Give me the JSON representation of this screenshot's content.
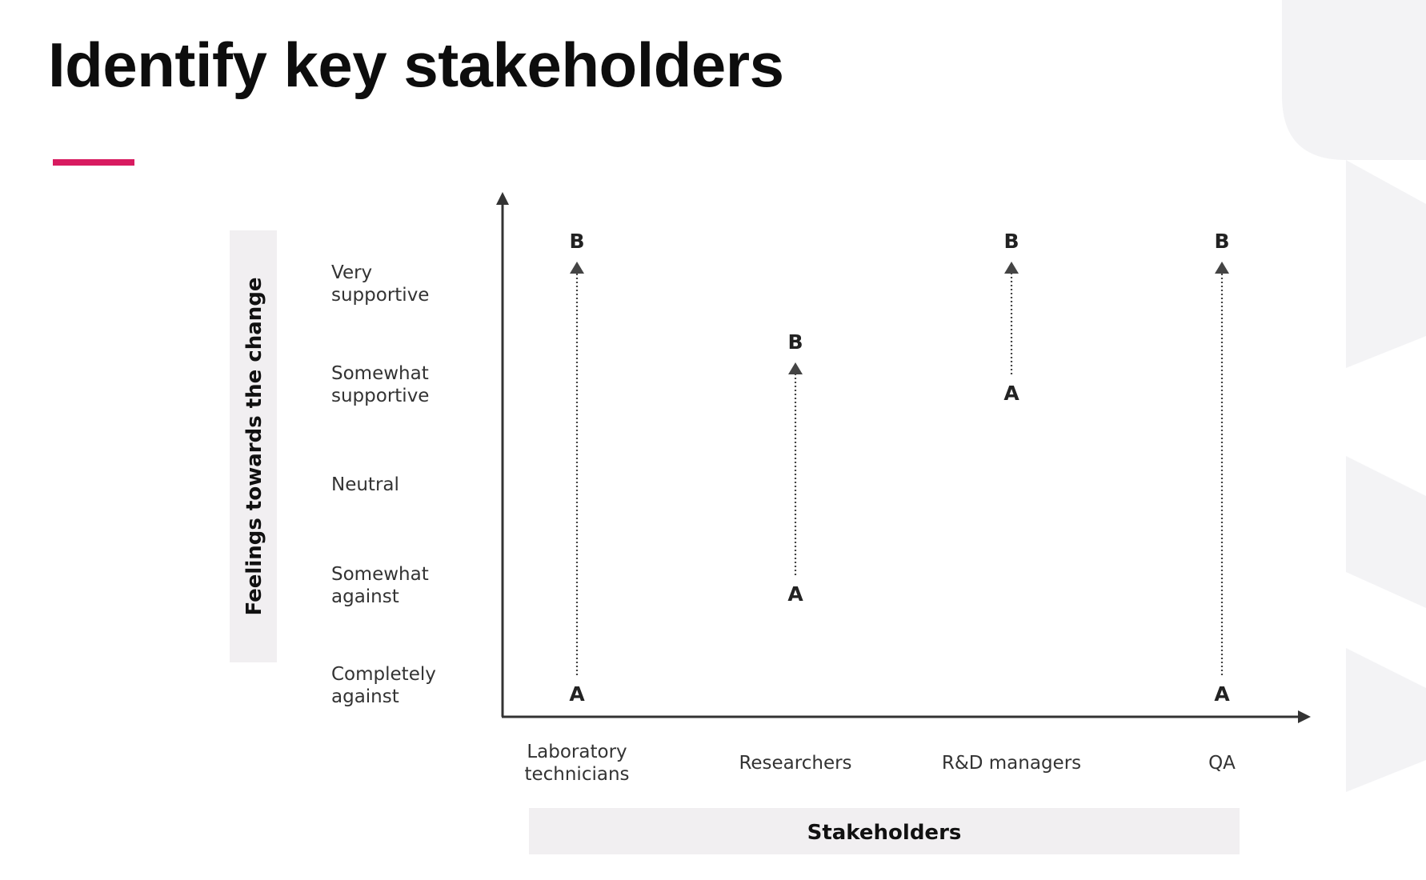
{
  "slide": {
    "title": "Identify key stakeholders",
    "accent_color": "#d81b60"
  },
  "chart_data": {
    "type": "scatter",
    "ylabel": "Feelings towards the change",
    "xlabel": "Stakeholders",
    "y_levels": [
      "Completely against",
      "Somewhat against",
      "Neutral",
      "Somewhat supportive",
      "Very supportive"
    ],
    "categories": [
      "Laboratory technicians",
      "Researchers",
      "R&D managers",
      "QA"
    ],
    "start_marker": "A",
    "end_marker": "B",
    "movements": [
      {
        "category": "Laboratory technicians",
        "from": "Completely against",
        "to": "Very supportive"
      },
      {
        "category": "Researchers",
        "from": "Somewhat against",
        "to": "Somewhat supportive"
      },
      {
        "category": "R&D managers",
        "from": "Somewhat supportive",
        "to": "Very supportive"
      },
      {
        "category": "QA",
        "from": "Completely against",
        "to": "Very supportive"
      }
    ],
    "colors": {
      "axis": "#333333",
      "arrow": "#444444",
      "label_band": "#f1eff1"
    },
    "grid": false,
    "legend": "none"
  }
}
